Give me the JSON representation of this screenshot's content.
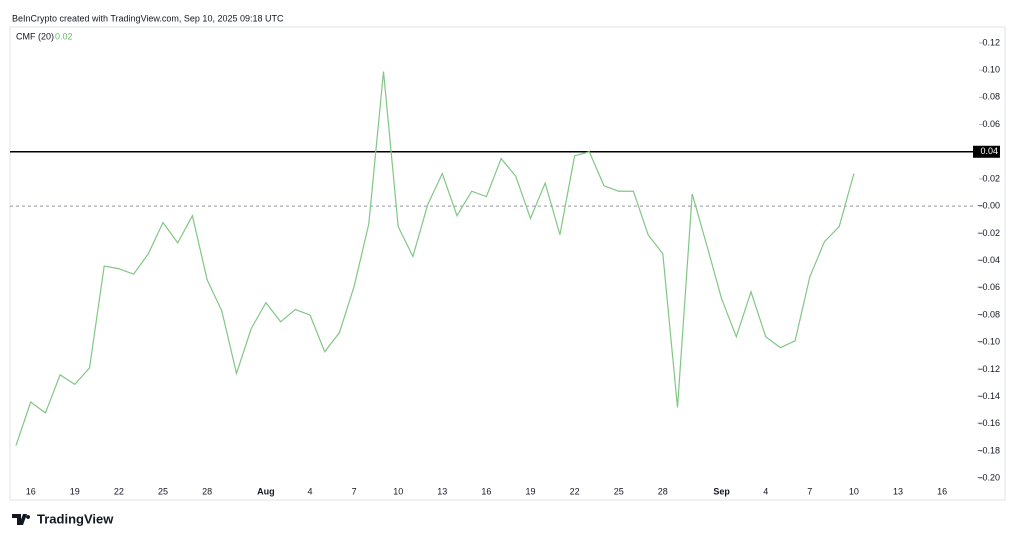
{
  "chart_data": {
    "type": "line",
    "header": "BeInCrypto created with TradingView.com, Sep 10, 2025 09:18 UTC",
    "indicator": "CMF (20)",
    "indicator_value": "0.02",
    "logo": "TradingView",
    "categories": [
      null,
      "16",
      null,
      null,
      "19",
      null,
      null,
      "22",
      null,
      null,
      "25",
      null,
      null,
      "28",
      null,
      null,
      null,
      "Aug",
      null,
      null,
      "4",
      null,
      null,
      "7",
      null,
      null,
      "10",
      null,
      null,
      "13",
      null,
      null,
      "16",
      null,
      null,
      "19",
      null,
      null,
      "22",
      null,
      null,
      "25",
      null,
      null,
      "28",
      null,
      null,
      null,
      "Sep",
      null,
      null,
      "4",
      null,
      null,
      "7",
      null,
      null,
      "10",
      null,
      null,
      "13",
      null,
      null,
      "16",
      null
    ],
    "series": [
      {
        "name": "CMF (20)",
        "color": "#81c784",
        "values": [
          -0.176,
          -0.144,
          -0.152,
          -0.124,
          -0.131,
          -0.119,
          -0.044,
          -0.046,
          -0.05,
          -0.035,
          -0.012,
          -0.027,
          -0.007,
          -0.054,
          -0.077,
          -0.123,
          -0.09,
          -0.071,
          -0.085,
          -0.076,
          -0.08,
          -0.107,
          -0.093,
          -0.059,
          -0.013,
          0.099,
          -0.015,
          -0.037,
          0.001,
          0.024,
          -0.007,
          0.011,
          0.007,
          0.035,
          0.022,
          -0.009,
          0.017,
          -0.021,
          0.037,
          0.04,
          0.015,
          0.011,
          0.011,
          -0.021,
          -0.035,
          -0.148,
          0.009,
          -0.029,
          -0.068,
          -0.096,
          -0.063,
          -0.096,
          -0.104,
          -0.099,
          -0.052,
          -0.026,
          -0.015,
          0.024,
          null,
          null,
          null,
          null,
          null,
          null,
          null
        ]
      }
    ],
    "ylim": [
      -0.205,
      0.131
    ],
    "yticks": [
      {
        "value": 0.12,
        "label": "0.12"
      },
      {
        "value": 0.1,
        "label": "0.10"
      },
      {
        "value": 0.08,
        "label": "0.08"
      },
      {
        "value": 0.06,
        "label": "0.06"
      },
      {
        "value": 0.02,
        "label": "0.02"
      },
      {
        "value": 0,
        "label": "−0.00"
      },
      {
        "value": -0.02,
        "label": "−0.02"
      },
      {
        "value": -0.04,
        "label": "−0.04"
      },
      {
        "value": -0.06,
        "label": "−0.06"
      },
      {
        "value": -0.08,
        "label": "−0.08"
      },
      {
        "value": -0.1,
        "label": "−0.10"
      },
      {
        "value": -0.12,
        "label": "−0.12"
      },
      {
        "value": -0.14,
        "label": "−0.14"
      },
      {
        "value": -0.16,
        "label": "−0.16"
      },
      {
        "value": -0.18,
        "label": "−0.18"
      },
      {
        "value": -0.2,
        "label": "−0.20"
      }
    ],
    "hline": {
      "value": 0.04,
      "label": "0.04",
      "color": "#000000"
    },
    "baseline": 0
  }
}
